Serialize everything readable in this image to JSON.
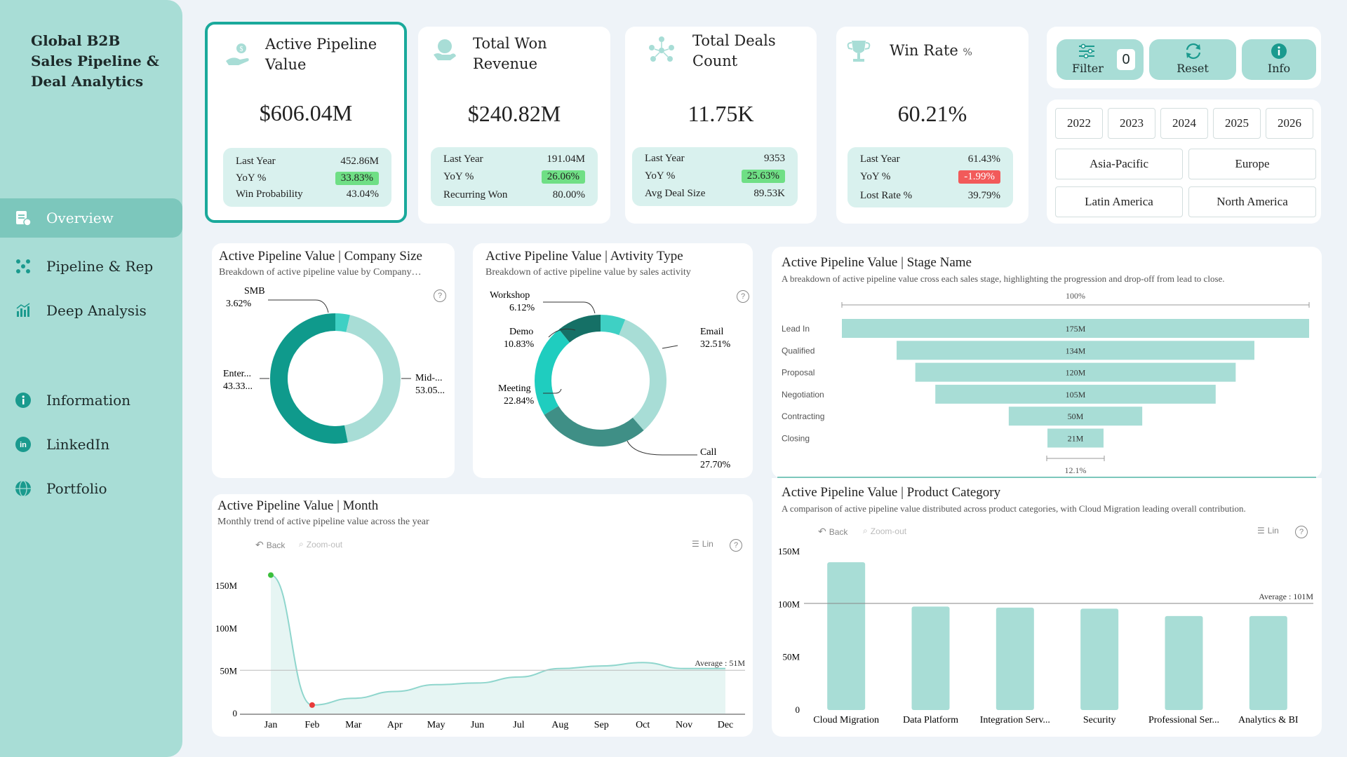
{
  "sidebar": {
    "title": "Global B2B Sales Pipeline & Deal Analytics",
    "nav": [
      {
        "label": "Overview",
        "icon": "report-icon",
        "active": true
      },
      {
        "label": "Pipeline & Rep",
        "icon": "network-icon",
        "active": false
      },
      {
        "label": "Deep Analysis",
        "icon": "analysis-icon",
        "active": false
      },
      {
        "label": "Information",
        "icon": "info-icon",
        "active": false
      },
      {
        "label": "LinkedIn",
        "icon": "linkedin-icon",
        "active": false
      },
      {
        "label": "Portfolio",
        "icon": "globe-icon",
        "active": false
      }
    ]
  },
  "kpis": [
    {
      "title": "Active Pipeline Value",
      "icon": "money-hand-icon",
      "value": "$606.04M",
      "rows": [
        {
          "label": "Last Year",
          "value": "452.86M"
        },
        {
          "label": "YoY %",
          "value": "33.83%",
          "status": "green"
        },
        {
          "label": "Win Probability",
          "value": "43.04%"
        }
      ]
    },
    {
      "title": "Total Won Revenue",
      "icon": "trophy-hand-icon",
      "value": "$240.82M",
      "rows": [
        {
          "label": "Last Year",
          "value": "191.04M"
        },
        {
          "label": "YoY %",
          "value": "26.06%",
          "status": "green"
        },
        {
          "label": "Recurring Won",
          "value": "80.00%"
        }
      ]
    },
    {
      "title": "Total Deals Count",
      "icon": "people-network-icon",
      "value": "11.75K",
      "rows": [
        {
          "label": "Last Year",
          "value": "9353"
        },
        {
          "label": "YoY %",
          "value": "25.63%",
          "status": "green"
        },
        {
          "label": "Avg Deal Size",
          "value": "89.53K"
        }
      ]
    },
    {
      "title": "Win Rate",
      "title_suffix": "%",
      "icon": "trophy-icon",
      "value": "60.21%",
      "rows": [
        {
          "label": "Last Year",
          "value": "61.43%"
        },
        {
          "label": "YoY %",
          "value": "-1.99%",
          "status": "red"
        },
        {
          "label": "Lost Rate %",
          "value": "39.79%"
        }
      ]
    }
  ],
  "toolbar": {
    "filter_label": "Filter",
    "filter_count": "0",
    "reset_label": "Reset",
    "info_label": "Info"
  },
  "years": [
    "2022",
    "2023",
    "2024",
    "2025",
    "2026"
  ],
  "regions": [
    "Asia-Pacific",
    "Europe",
    "Latin America",
    "North America"
  ],
  "company_size": {
    "title": "Active Pipeline Value | Company Size",
    "subtitle": "Breakdown of active pipeline value by Company…",
    "labels": [
      {
        "name": "SMB",
        "pct": "3.62%"
      },
      {
        "name": "Enter...",
        "pct": "43.33..."
      },
      {
        "name": "Mid-...",
        "pct": "53.05..."
      }
    ]
  },
  "activity_type": {
    "title": "Active Pipeline Value | Avtivity Type",
    "subtitle": "Breakdown of active pipeline value by sales activity",
    "labels": [
      {
        "name": "Workshop",
        "pct": "6.12%"
      },
      {
        "name": "Demo",
        "pct": "10.83%"
      },
      {
        "name": "Meeting",
        "pct": "22.84%"
      },
      {
        "name": "Email",
        "pct": "32.51%"
      },
      {
        "name": "Call",
        "pct": "27.70%"
      }
    ]
  },
  "stage": {
    "title": "Active Pipeline Value | Stage Name",
    "subtitle": "A breakdown of active pipeline value cross each sales stage, highlighting the progression and drop-off from lead to close.",
    "top_pct": "100%",
    "bottom_pct": "12.1%"
  },
  "month": {
    "title": "Active Pipeline Value | Month",
    "subtitle": "Monthly trend of active pipeline value  across the year",
    "back": "Back",
    "zoom": "Zoom-out",
    "lin": "Lin",
    "average_label": "Average : 51M"
  },
  "product": {
    "title": "Active Pipeline Value | Product Category",
    "subtitle": "A comparison of active pipeline value distributed across product categories, with Cloud Migration leading overall contribution.",
    "back": "Back",
    "zoom": "Zoom-out",
    "lin": "Lin",
    "average_label": "Average : 101M"
  },
  "chart_data": [
    {
      "type": "pie",
      "title": "Active Pipeline Value | Company Size",
      "categories": [
        "SMB",
        "Enterprise",
        "Mid-Market"
      ],
      "values": [
        3.62,
        43.33,
        53.05
      ],
      "colors": [
        "#3fd0c4",
        "#a8ddd6",
        "#0f9a8c"
      ]
    },
    {
      "type": "pie",
      "title": "Active Pipeline Value | Avtivity Type",
      "categories": [
        "Workshop",
        "Email",
        "Call",
        "Meeting",
        "Demo"
      ],
      "values": [
        6.12,
        32.51,
        27.7,
        22.84,
        10.83
      ],
      "colors": [
        "#3fd0c4",
        "#a8ddd6",
        "#3f8f86",
        "#1fcdbf",
        "#157066"
      ]
    },
    {
      "type": "bar",
      "title": "Active Pipeline Value | Stage Name",
      "categories": [
        "Lead In",
        "Qualified",
        "Proposal",
        "Negotiation",
        "Contracting",
        "Closing"
      ],
      "values": [
        175,
        134,
        120,
        105,
        50,
        21
      ],
      "value_labels": [
        "175M",
        "134M",
        "120M",
        "105M",
        "50M",
        "21M"
      ]
    },
    {
      "type": "line",
      "title": "Active Pipeline Value | Month",
      "categories": [
        "Jan",
        "Feb",
        "Mar",
        "Apr",
        "May",
        "Jun",
        "Jul",
        "Aug",
        "Sep",
        "Oct",
        "Nov",
        "Dec"
      ],
      "values": [
        163,
        10,
        18,
        26,
        34,
        36,
        43,
        53,
        56,
        60,
        53,
        53
      ],
      "yticks": [
        {
          "v": 0,
          "label": "0"
        },
        {
          "v": 50,
          "label": "50M"
        },
        {
          "v": 100,
          "label": "100M"
        },
        {
          "v": 150,
          "label": "150M"
        }
      ],
      "ylim": [
        0,
        170
      ],
      "average": 51
    },
    {
      "type": "bar",
      "title": "Active Pipeline Value | Product Category",
      "categories": [
        "Cloud Migration",
        "Data Platform",
        "Integration Serv...",
        "Security",
        "Professional Ser...",
        "Analytics & BI"
      ],
      "values": [
        140,
        98,
        97,
        96,
        89,
        89
      ],
      "yticks": [
        {
          "v": 0,
          "label": "0"
        },
        {
          "v": 50,
          "label": "50M"
        },
        {
          "v": 100,
          "label": "100M"
        },
        {
          "v": 150,
          "label": "150M"
        }
      ],
      "ylim": [
        0,
        150
      ],
      "average": 101
    }
  ]
}
